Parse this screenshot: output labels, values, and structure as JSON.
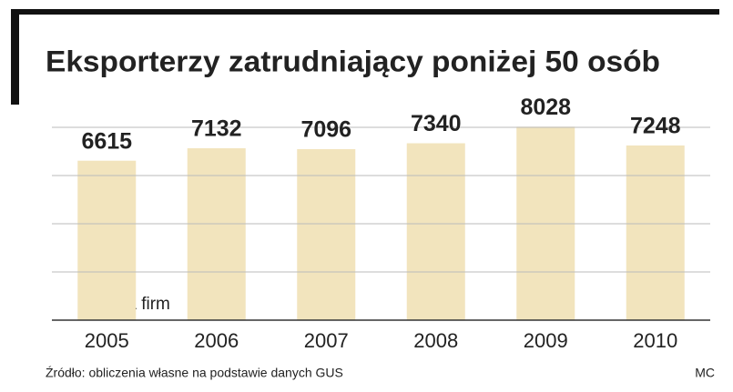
{
  "chart_data": {
    "type": "bar",
    "title": "Eksporterzy zatrudniający poniżej 50 osób",
    "categories": [
      "2005",
      "2006",
      "2007",
      "2008",
      "2009",
      "2010"
    ],
    "values": [
      6615,
      7132,
      7096,
      7340,
      8028,
      7248
    ],
    "color": "#f2e4bd",
    "ylim": [
      0,
      8000
    ],
    "yticks": [
      0,
      2000,
      4000,
      6000,
      8000
    ],
    "grid": true,
    "annotation": "Liczba firm",
    "source": "Źródło: obliczenia własne na podstawie danych GUS",
    "credit": "MC"
  }
}
